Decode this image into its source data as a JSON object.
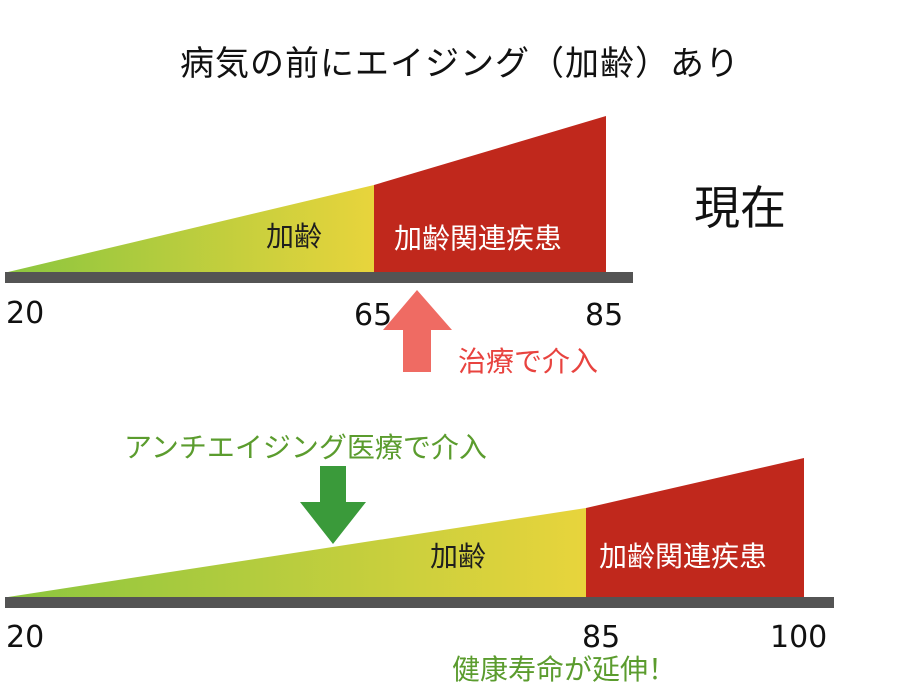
{
  "title": "病気の前にエイジング（加齢）あり",
  "current": {
    "status_label": "現在",
    "aging_label": "加齢",
    "disease_label": "加齢関連疾患",
    "ticks": [
      "20",
      "65",
      "85"
    ],
    "intervention_label": "治療で介入"
  },
  "future": {
    "intervention_label": "アンチエイジング医療で介入",
    "aging_label": "加齢",
    "disease_label": "加齢関連疾患",
    "ticks": [
      "20",
      "85",
      "100"
    ],
    "result_label": "健康寿命が延伸！"
  },
  "colors": {
    "gradient_start": "#8cc63f",
    "gradient_end": "#e8d43c",
    "disease_red": "#c0281c",
    "axis_gray": "#545454",
    "up_arrow": "#ef6b63",
    "down_arrow": "#3a9a3a",
    "caption_red": "#e8433f",
    "caption_green": "#5b9c2e"
  }
}
